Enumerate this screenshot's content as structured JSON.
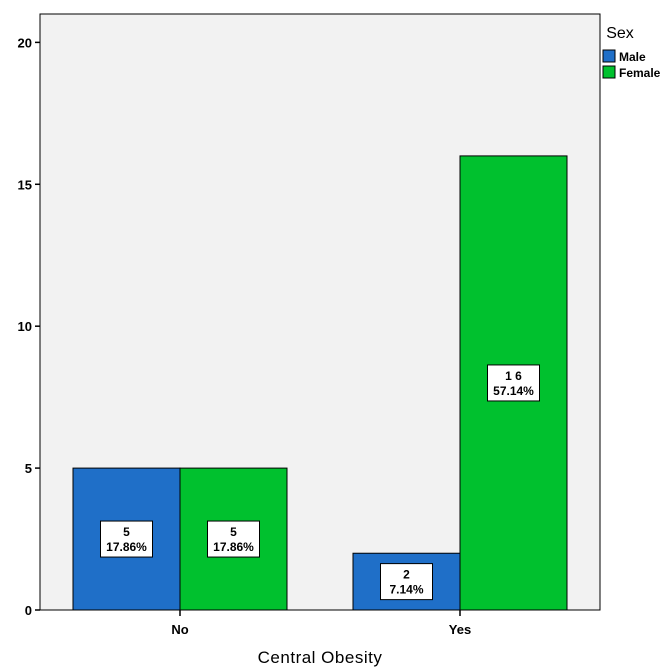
{
  "chart_data": {
    "type": "bar",
    "categories": [
      "No",
      "Yes"
    ],
    "series": [
      {
        "name": "Male",
        "color": "#1f6fc8",
        "values": [
          5,
          2
        ],
        "labels": [
          [
            "5",
            "17.86%"
          ],
          [
            "2",
            "7.14%"
          ]
        ]
      },
      {
        "name": "Female",
        "color": "#00c12e",
        "values": [
          5,
          16
        ],
        "labels": [
          [
            "5",
            "17.86%"
          ],
          [
            "1 6",
            "57.14%"
          ]
        ]
      }
    ],
    "xlabel": "Central Obesity",
    "ylabel": "",
    "ylim": [
      0,
      21
    ],
    "yticks": [
      0,
      5,
      10,
      15,
      20
    ],
    "legend": {
      "title": "Sex",
      "position": "top-right"
    },
    "background": "#f2f2f2"
  }
}
